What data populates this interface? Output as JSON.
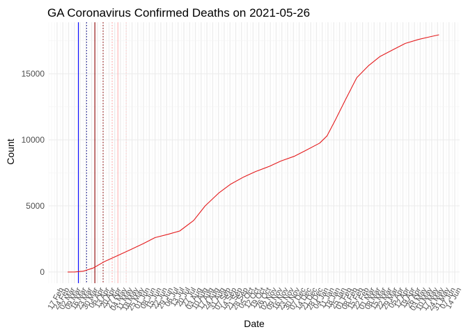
{
  "chart_data": {
    "type": "line",
    "title": "GA Coronavirus Confirmed Deaths on 2021-05-26",
    "xlabel": "Date",
    "ylabel": "Count",
    "ylim": [
      -850,
      18900
    ],
    "y_ticks": [
      0,
      5000,
      10000,
      15000
    ],
    "y_tick_labels": [
      "0",
      "5000",
      "10000",
      "15000"
    ],
    "x_ticks": [
      "17 Feb",
      "24 Feb",
      "02 Mar",
      "09 Mar",
      "16 Mar",
      "23 Mar",
      "30 Mar",
      "06 Apr",
      "13 Apr",
      "20 Apr",
      "27 Apr",
      "04 May",
      "11 May",
      "18 May",
      "25 May",
      "01 Jun",
      "08 Jun",
      "15 Jun",
      "22 Jun",
      "29 Jun",
      "06 Jul",
      "13 Jul",
      "20 Jul",
      "27 Jul",
      "03 Aug",
      "10 Aug",
      "17 Aug",
      "24 Aug",
      "31 Aug",
      "07 Sep",
      "14 Sep",
      "21 Sep",
      "28 Sep",
      "05 Oct",
      "12 Oct",
      "19 Oct",
      "26 Oct",
      "02 Nov",
      "09 Nov",
      "16 Nov",
      "23 Nov",
      "30 Nov",
      "07 Dec",
      "14 Dec",
      "21 Dec",
      "28 Dec",
      "04 Jan",
      "11 Jan",
      "18 Jan",
      "25 Jan",
      "01 Feb",
      "08 Feb",
      "15 Feb",
      "22 Feb",
      "01 Mar",
      "08 Mar",
      "15 Mar",
      "22 Mar",
      "29 Mar",
      "05 Apr",
      "12 Apr",
      "19 Apr",
      "26 Apr",
      "03 May",
      "10 May",
      "17 May",
      "24 May",
      "31 May",
      "07 Jun",
      "14 Jun"
    ],
    "series": [
      {
        "color": "#e41a1c",
        "x": [
          "2020-03-01",
          "2020-03-10",
          "2020-03-20",
          "2020-04-01",
          "2020-04-15",
          "2020-05-01",
          "2020-05-15",
          "2020-06-01",
          "2020-06-15",
          "2020-07-01",
          "2020-07-15",
          "2020-08-01",
          "2020-08-15",
          "2020-09-01",
          "2020-09-15",
          "2020-10-01",
          "2020-10-15",
          "2020-11-01",
          "2020-11-15",
          "2020-12-01",
          "2020-12-15",
          "2021-01-01",
          "2021-01-10",
          "2021-01-20",
          "2021-02-01",
          "2021-02-15",
          "2021-03-01",
          "2021-03-15",
          "2021-04-01",
          "2021-04-15",
          "2021-05-01",
          "2021-05-15",
          "2021-05-26"
        ],
        "y": [
          0,
          5,
          60,
          300,
          800,
          1250,
          1650,
          2150,
          2600,
          2850,
          3100,
          3900,
          5000,
          6000,
          6650,
          7200,
          7600,
          8000,
          8400,
          8750,
          9200,
          9750,
          10300,
          11500,
          13000,
          14700,
          15600,
          16300,
          16850,
          17300,
          17600,
          17800,
          17950
        ]
      }
    ],
    "vlines": [
      {
        "date": "2020-03-14",
        "color": "#0000ff",
        "style": "solid"
      },
      {
        "date": "2020-03-24",
        "color": "#000080",
        "style": "dotted"
      },
      {
        "date": "2020-04-03",
        "color": "#8b0000",
        "style": "solid"
      },
      {
        "date": "2020-04-13",
        "color": "#8b0000",
        "style": "dotted"
      },
      {
        "date": "2020-04-24",
        "color": "#ff9999",
        "style": "dotted"
      },
      {
        "date": "2020-05-01",
        "color": "#ffb3b3",
        "style": "solid"
      },
      {
        "date": "2020-05-11",
        "color": "#ffcccc",
        "style": "dotted"
      }
    ],
    "x_range": [
      "2020-02-07",
      "2021-06-20"
    ],
    "grid": true,
    "legend": "none"
  }
}
